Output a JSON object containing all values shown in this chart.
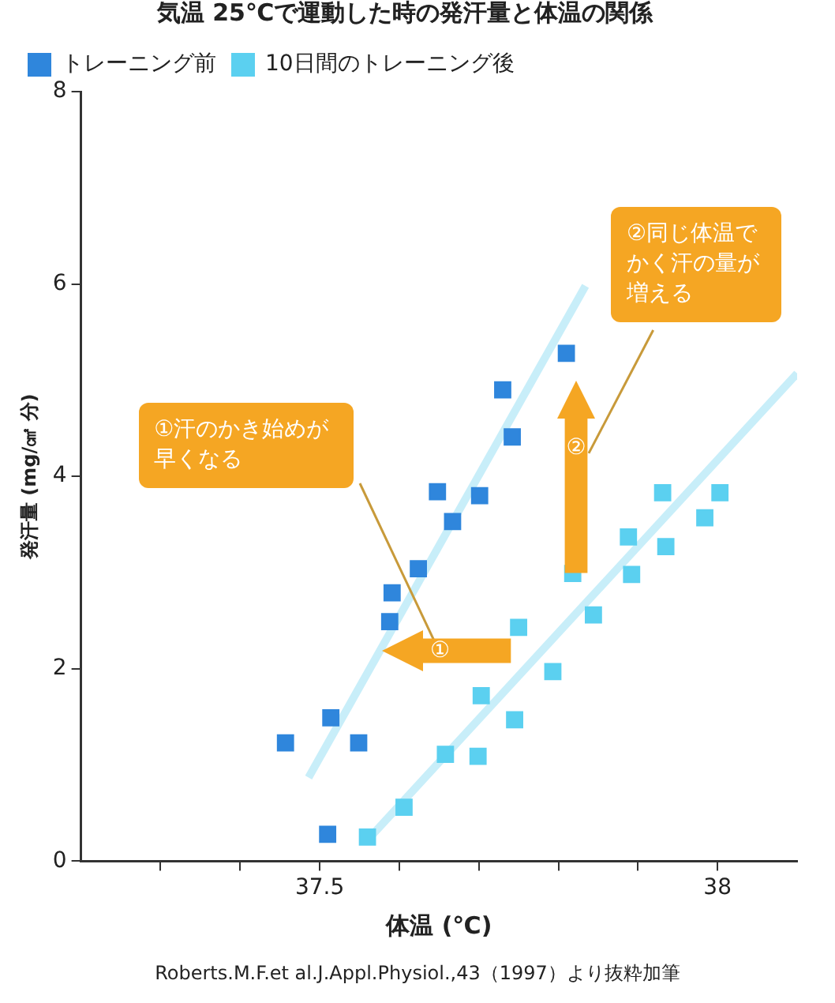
{
  "chart_data": {
    "type": "scatter",
    "title": "気温 25℃で運動した時の発汗量と体温の関係",
    "xlabel": "体温 (℃)",
    "ylabel": "発汗量 (mg/㎠ 分)",
    "xlim": [
      37.2,
      38.1
    ],
    "xticks": [
      {
        "value": 37.3,
        "label": null
      },
      {
        "value": 37.4,
        "label": null
      },
      37.5,
      {
        "value": 37.6,
        "label": null
      },
      {
        "value": 37.7,
        "label": null
      },
      {
        "value": 37.8,
        "label": null
      },
      {
        "value": 37.9,
        "label": null
      },
      38
    ],
    "ylim": [
      0,
      8
    ],
    "yticks": [
      0,
      2,
      4,
      6,
      8
    ],
    "grid": false,
    "legend": "top left",
    "marker": "square",
    "series": [
      {
        "name": "トレーニング前",
        "color": "#2f86dc",
        "x": [
          37.457,
          37.514,
          37.549,
          37.51,
          37.588,
          37.591,
          37.624,
          37.667,
          37.648,
          37.701,
          37.73,
          37.742,
          37.81
        ],
        "values": [
          1.23,
          1.49,
          1.23,
          0.28,
          2.49,
          2.79,
          3.04,
          3.53,
          3.84,
          3.8,
          4.9,
          4.41,
          5.28
        ]
      },
      {
        "name": "10日間のトレーニング後",
        "color": "#5bd0f0",
        "x": [
          37.56,
          37.606,
          37.658,
          37.699,
          37.703,
          37.745,
          37.75,
          37.793,
          37.818,
          37.844,
          37.888,
          37.892,
          37.935,
          37.931,
          37.984,
          38.003
        ],
        "values": [
          0.25,
          0.56,
          1.11,
          1.09,
          1.72,
          1.47,
          2.43,
          1.97,
          2.99,
          2.56,
          3.37,
          2.98,
          3.27,
          3.83,
          3.57,
          3.83
        ]
      },
      {
        "type": "line",
        "marker": "none",
        "color": "#c8eef9",
        "x": [
          37.486,
          37.834
        ],
        "values": [
          0.87,
          5.98
        ]
      },
      {
        "type": "line",
        "marker": "none",
        "color": "#c8eef9",
        "x": [
          37.559,
          38.1
        ],
        "values": [
          0.21,
          5.07
        ]
      }
    ],
    "annotations": [
      "①汗のかき始めが早くなる",
      "②同じ体温でかく汗の量が増える",
      "①",
      "②",
      "Roberts.M.F.et al.J.Appl.Physiol.,43（1997）より抜粋加筆"
    ]
  }
}
